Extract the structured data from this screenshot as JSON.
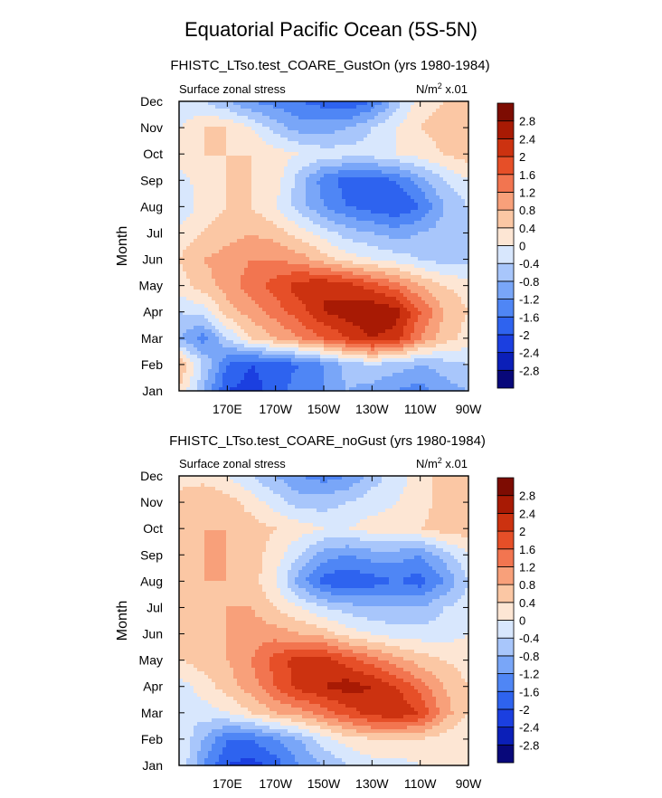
{
  "title": "Equatorial Pacific Ocean (5S-5N)",
  "panels": [
    {
      "subtitle": "FHISTC_LTso.test_COARE_GustOn (yrs 1980-1984)",
      "left_label": "Surface zonal stress",
      "units_main": "N/m",
      "units_exp": "2",
      "units_tail": " x.01",
      "ylabel": "Month"
    },
    {
      "subtitle": "FHISTC_LTso.test_COARE_noGust (yrs 1980-1984)",
      "left_label": "Surface zonal stress",
      "units_main": "N/m",
      "units_exp": "2",
      "units_tail": " x.01",
      "ylabel": "Month"
    }
  ],
  "chart_data": [
    {
      "type": "heatmap",
      "title": "FHISTC_LTso.test_COARE_GustOn (yrs 1980-1984)",
      "subtitle_left": "Surface zonal stress",
      "units": "N/m2 x.01",
      "xlabel": "",
      "ylabel": "Month",
      "xlim": [
        150,
        270
      ],
      "x_ticks": [
        170,
        190,
        210,
        230,
        250,
        270
      ],
      "x_tick_labels": [
        "170E",
        "170W",
        "150W",
        "130W",
        "110W",
        "90W"
      ],
      "y_tick_labels": [
        "Jan",
        "Feb",
        "Mar",
        "Apr",
        "May",
        "Jun",
        "Jul",
        "Aug",
        "Sep",
        "Oct",
        "Nov",
        "Dec"
      ],
      "x_grid": [
        150,
        160,
        170,
        180,
        190,
        200,
        210,
        220,
        230,
        240,
        250,
        260,
        270
      ],
      "z": [
        [
          0.4,
          -0.8,
          -2.0,
          -2.2,
          -1.8,
          -1.4,
          -1.2,
          -0.8,
          -1.0,
          -1.2,
          -1.4,
          -1.0,
          -0.8
        ],
        [
          0.8,
          -0.4,
          -1.6,
          -2.0,
          -1.8,
          -1.6,
          -1.2,
          -0.6,
          -0.4,
          -0.6,
          -0.8,
          -0.6,
          -0.4
        ],
        [
          -0.8,
          -1.4,
          -0.4,
          0.4,
          0.8,
          1.2,
          1.6,
          2.0,
          2.4,
          2.2,
          1.2,
          0.6,
          0.2
        ],
        [
          -0.4,
          -0.2,
          0.6,
          1.0,
          1.4,
          1.8,
          2.4,
          2.6,
          2.8,
          2.6,
          1.6,
          0.8,
          0.4
        ],
        [
          0.2,
          0.6,
          1.0,
          1.4,
          1.8,
          2.2,
          2.4,
          2.2,
          1.8,
          1.4,
          0.8,
          0.4,
          0.2
        ],
        [
          0.4,
          0.8,
          1.0,
          1.2,
          1.2,
          1.0,
          0.6,
          0.2,
          0.0,
          -0.2,
          -0.4,
          -0.6,
          -0.6
        ],
        [
          0.2,
          0.4,
          0.6,
          0.8,
          0.6,
          0.2,
          -0.2,
          -0.6,
          -0.8,
          -1.0,
          -0.8,
          -0.6,
          -0.4
        ],
        [
          -0.4,
          0.2,
          0.4,
          0.4,
          0.0,
          -0.6,
          -1.2,
          -1.6,
          -1.8,
          -2.0,
          -1.6,
          -0.8,
          -0.4
        ],
        [
          -0.2,
          0.2,
          0.4,
          0.4,
          0.2,
          -0.6,
          -1.4,
          -1.8,
          -1.8,
          -1.6,
          -1.0,
          -0.4,
          0.0
        ],
        [
          0.2,
          0.4,
          0.4,
          0.4,
          0.2,
          0.0,
          -0.2,
          -0.2,
          -0.2,
          0.0,
          0.2,
          0.4,
          0.6
        ],
        [
          0.0,
          0.4,
          0.4,
          0.0,
          -0.6,
          -1.0,
          -1.0,
          -0.8,
          -0.4,
          0.0,
          0.4,
          0.6,
          0.6
        ],
        [
          -0.4,
          -0.4,
          -0.8,
          -1.2,
          -1.4,
          -1.6,
          -1.8,
          -2.0,
          -1.6,
          -0.6,
          0.2,
          0.4,
          0.4
        ]
      ]
    },
    {
      "type": "heatmap",
      "title": "FHISTC_LTso.test_COARE_noGust (yrs 1980-1984)",
      "subtitle_left": "Surface zonal stress",
      "units": "N/m2 x.01",
      "xlabel": "",
      "ylabel": "Month",
      "xlim": [
        150,
        270
      ],
      "x_ticks": [
        170,
        190,
        210,
        230,
        250,
        270
      ],
      "x_tick_labels": [
        "170E",
        "170W",
        "150W",
        "130W",
        "110W",
        "90W"
      ],
      "y_tick_labels": [
        "Jan",
        "Feb",
        "Mar",
        "Apr",
        "May",
        "Jun",
        "Jul",
        "Aug",
        "Sep",
        "Oct",
        "Nov",
        "Dec"
      ],
      "x_grid": [
        150,
        160,
        170,
        180,
        190,
        200,
        210,
        220,
        230,
        240,
        250,
        260,
        270
      ],
      "z": [
        [
          0.0,
          -1.2,
          -2.0,
          -2.2,
          -1.8,
          -1.2,
          -0.8,
          -0.4,
          -0.2,
          -0.2,
          0.0,
          0.0,
          0.0
        ],
        [
          0.0,
          -0.8,
          -1.6,
          -1.6,
          -1.2,
          -0.8,
          -0.2,
          0.2,
          0.4,
          0.4,
          0.4,
          0.2,
          0.0
        ],
        [
          -0.4,
          -0.2,
          0.0,
          0.4,
          0.8,
          1.0,
          1.4,
          1.8,
          2.2,
          2.4,
          2.0,
          1.0,
          0.4
        ],
        [
          -0.2,
          0.2,
          0.6,
          1.0,
          1.6,
          2.2,
          2.4,
          2.6,
          2.4,
          2.0,
          1.4,
          0.8,
          0.4
        ],
        [
          0.4,
          0.6,
          0.8,
          1.2,
          1.8,
          2.2,
          2.2,
          1.8,
          1.4,
          1.0,
          0.6,
          0.4,
          0.2
        ],
        [
          0.6,
          0.8,
          0.8,
          1.0,
          1.0,
          0.8,
          0.6,
          0.2,
          0.0,
          -0.2,
          -0.2,
          -0.2,
          0.0
        ],
        [
          0.4,
          0.6,
          0.8,
          0.8,
          0.4,
          0.0,
          -0.4,
          -0.6,
          -0.8,
          -0.8,
          -0.8,
          -0.4,
          -0.2
        ],
        [
          0.4,
          0.8,
          0.8,
          0.6,
          0.0,
          -1.0,
          -1.8,
          -2.0,
          -1.8,
          -1.6,
          -1.8,
          -1.2,
          -0.4
        ],
        [
          0.4,
          0.8,
          0.8,
          0.6,
          0.2,
          -0.4,
          -1.0,
          -1.2,
          -1.0,
          -1.0,
          -1.2,
          -0.6,
          0.0
        ],
        [
          0.4,
          0.8,
          0.8,
          0.6,
          0.4,
          0.2,
          0.0,
          0.0,
          0.2,
          0.2,
          0.4,
          0.6,
          0.6
        ],
        [
          0.6,
          0.8,
          0.6,
          0.2,
          -0.2,
          -0.6,
          -0.6,
          -0.4,
          -0.2,
          0.0,
          0.2,
          0.6,
          0.8
        ],
        [
          0.2,
          0.2,
          0.0,
          -0.4,
          -0.8,
          -1.2,
          -1.4,
          -1.2,
          -0.6,
          -0.2,
          0.2,
          0.6,
          0.8
        ]
      ]
    }
  ],
  "colorbar": {
    "levels": [
      "-2.8",
      "-2.4",
      "-2",
      "-1.6",
      "-1.2",
      "-0.8",
      "-0.4",
      "0",
      "0.4",
      "0.8",
      "1.2",
      "1.6",
      "2",
      "2.4",
      "2.8"
    ],
    "colors": [
      "#08087a",
      "#0b1fb8",
      "#1b3fe0",
      "#2e63ef",
      "#4f86f5",
      "#79a6f8",
      "#a8c6fb",
      "#d8e7fd",
      "#fde6d4",
      "#fbc7a4",
      "#f8a07a",
      "#f27550",
      "#e64f28",
      "#cc3210",
      "#a81a04",
      "#7d0c02"
    ]
  }
}
